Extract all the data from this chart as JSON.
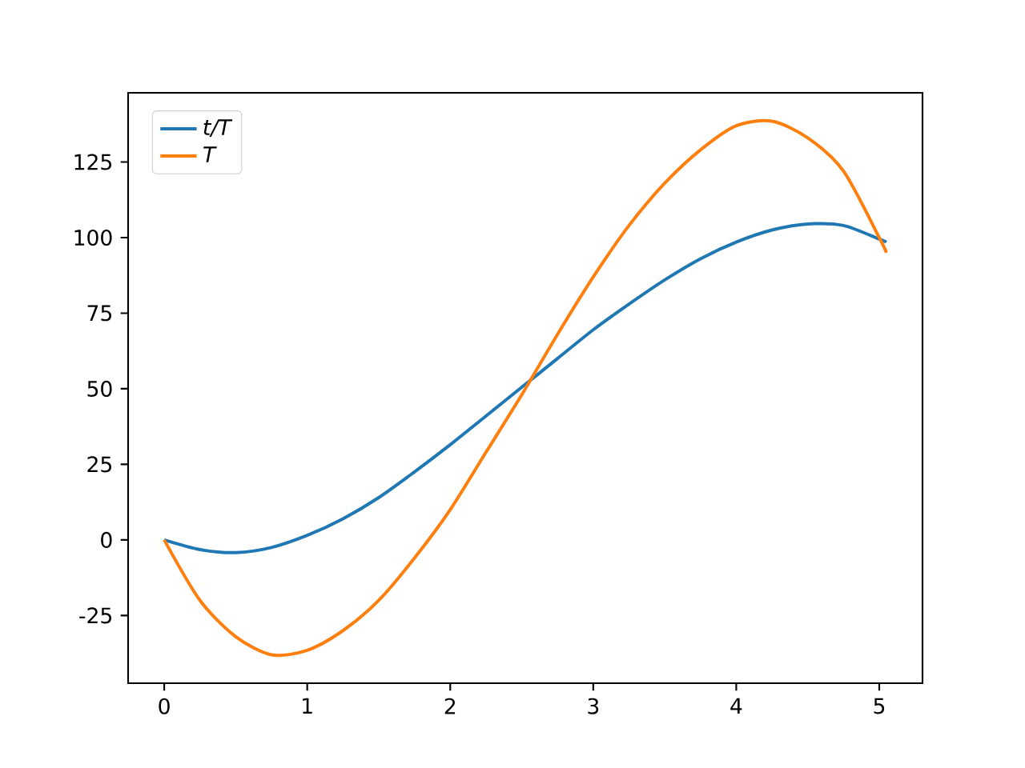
{
  "chart_data": {
    "type": "line",
    "legend": "top left",
    "xlim": [
      -0.2525,
      5.3025
    ],
    "ylim": [
      -47.4,
      147.9
    ],
    "xticks": [
      0,
      1,
      2,
      3,
      4,
      5
    ],
    "yticks": [
      -25,
      0,
      25,
      50,
      75,
      100,
      125
    ],
    "series": [
      {
        "name": "t/T",
        "color": "#1f77b4",
        "x": [
          0,
          0.25,
          0.5,
          0.75,
          1,
          1.25,
          1.5,
          1.75,
          2,
          2.25,
          2.5,
          2.75,
          3,
          3.25,
          3.5,
          3.75,
          4,
          4.25,
          4.5,
          4.75,
          5,
          5.05
        ],
        "values": [
          0,
          -3.2,
          -4.2,
          -2.5,
          1.5,
          7,
          14,
          22.5,
          31.5,
          41,
          50.5,
          60,
          69.5,
          78,
          86,
          93,
          98.5,
          102.5,
          104.5,
          104,
          99.5,
          98.5
        ]
      },
      {
        "name": "T",
        "color": "#ff7f0e",
        "x": [
          0,
          0.25,
          0.5,
          0.75,
          1,
          1.25,
          1.5,
          1.75,
          2,
          2.25,
          2.5,
          2.75,
          3,
          3.25,
          3.5,
          3.75,
          4,
          4.25,
          4.5,
          4.75,
          5,
          5.05
        ],
        "values": [
          0,
          -20,
          -32,
          -38,
          -36.5,
          -30,
          -20,
          -6,
          10,
          29,
          48,
          68,
          87,
          104,
          118,
          129,
          137,
          138.5,
          133,
          122,
          100,
          95
        ]
      }
    ]
  }
}
